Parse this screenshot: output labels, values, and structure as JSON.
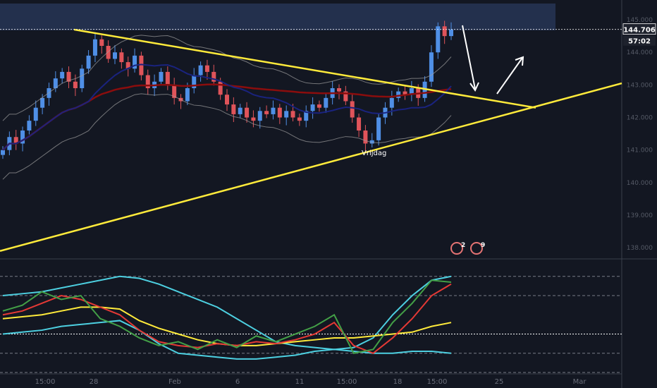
{
  "chart_data": [
    {
      "type": "candlestick",
      "title": "",
      "xlabel": "",
      "ylabel": "",
      "ylim": [
        137.7,
        145.5
      ],
      "y_ticks": [
        {
          "value": 145,
          "label": "145.000"
        },
        {
          "value": 144,
          "label": "144.000"
        },
        {
          "value": 143,
          "label": "143.000"
        },
        {
          "value": 142,
          "label": "142.000"
        },
        {
          "value": 141,
          "label": "141.000"
        },
        {
          "value": 140,
          "label": "140.000"
        },
        {
          "value": 139,
          "label": "139.000"
        },
        {
          "value": 138,
          "label": "138.000"
        }
      ],
      "x_ticks": [
        "15:00",
        "28",
        "Feb",
        "6",
        "11",
        "15:00",
        "18",
        "15:00",
        "25",
        "Mar"
      ],
      "current_price": {
        "value": 144.706,
        "label": "144.706"
      },
      "countdown": "57:02",
      "annotation": "Vrijdag",
      "badges": [
        "2",
        "9"
      ],
      "colors": {
        "up": "#4f8fe6",
        "down": "#e0545a",
        "trendline": "#ffeb3b",
        "ma_slow": "#8b0d0d",
        "ma_fast": "#1a237e",
        "bands": "#9e9e9e"
      },
      "closes": [
        141.0,
        141.4,
        141.2,
        141.6,
        141.9,
        142.3,
        142.6,
        142.9,
        143.2,
        143.4,
        143.1,
        142.9,
        143.5,
        143.9,
        144.4,
        144.2,
        143.8,
        144.0,
        143.7,
        143.5,
        143.9,
        143.3,
        142.9,
        143.1,
        143.4,
        143.0,
        142.6,
        142.5,
        142.9,
        143.3,
        143.6,
        143.4,
        143.1,
        142.7,
        142.4,
        142.1,
        142.3,
        142.0,
        141.9,
        142.2,
        142.1,
        142.3,
        142.0,
        142.2,
        142.0,
        141.9,
        142.2,
        142.4,
        142.3,
        142.6,
        142.9,
        142.8,
        142.5,
        142.0,
        141.6,
        141.2,
        141.3,
        142.0,
        142.3,
        142.6,
        142.8,
        142.7,
        142.9,
        142.6,
        143.1,
        144.0,
        144.8,
        144.5,
        144.7
      ],
      "support_line": {
        "start": 137.9,
        "end": 142.3
      },
      "resistance_line": {
        "start": 144.7,
        "end": 142.3
      },
      "indicator": {
        "ylim": [
          30,
          88
        ],
        "levels": [
          80,
          70,
          50,
          40,
          30
        ],
        "series": [
          {
            "color": "#4dd0e1",
            "values": [
              70,
              71,
              72,
              74,
              76,
              78,
              80,
              79,
              76,
              72,
              68,
              64,
              58,
              52,
              46,
              44,
              43,
              42,
              43,
              48,
              60,
              70,
              78,
              80
            ]
          },
          {
            "color": "#4dd0e1",
            "values": [
              50,
              51,
              52,
              54,
              55,
              56,
              57,
              52,
              45,
              40,
              39,
              38,
              37,
              37,
              38,
              39,
              41,
              42,
              41,
              40,
              40,
              41,
              41,
              40
            ]
          },
          {
            "color": "#ffeb3b",
            "values": [
              58,
              59,
              60,
              62,
              64,
              64,
              63,
              57,
              53,
              50,
              47,
              45,
              44,
              44,
              45,
              46,
              47,
              48,
              48,
              49,
              50,
              51,
              54,
              56
            ]
          },
          {
            "color": "#e53935",
            "values": [
              60,
              62,
              66,
              70,
              68,
              64,
              60,
              52,
              46,
              44,
              43,
              45,
              44,
              46,
              45,
              47,
              50,
              56,
              44,
              40,
              48,
              58,
              70,
              76
            ]
          },
          {
            "color": "#43a047",
            "values": [
              62,
              65,
              72,
              68,
              70,
              58,
              54,
              48,
              44,
              46,
              42,
              47,
              43,
              49,
              46,
              50,
              54,
              60,
              40,
              42,
              56,
              66,
              78,
              77
            ]
          }
        ]
      }
    }
  ]
}
